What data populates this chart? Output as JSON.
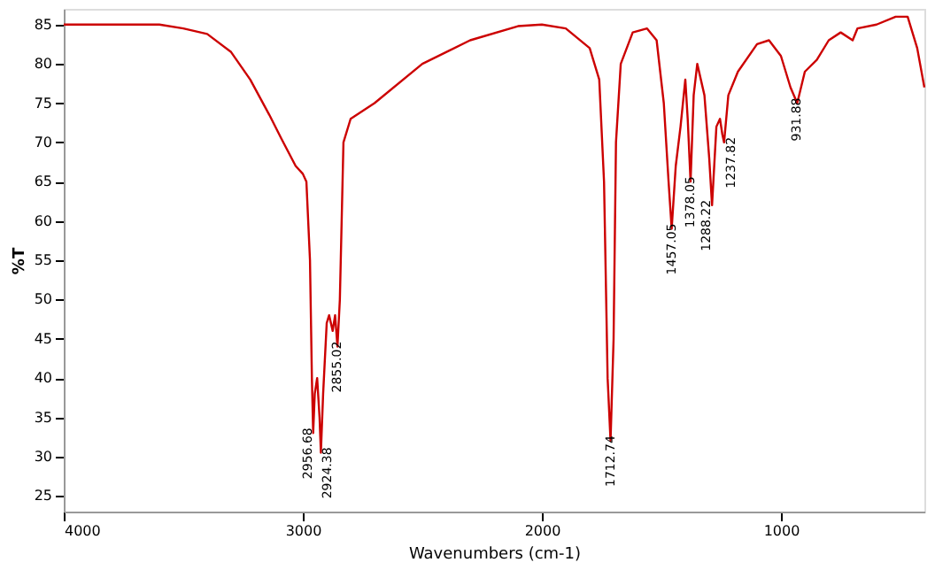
{
  "chart_data": {
    "type": "line",
    "xlabel": "Wavenumbers (cm-1)",
    "ylabel": "%T",
    "x": [
      4000,
      3800,
      3600,
      3500,
      3400,
      3300,
      3220,
      3140,
      3090,
      3030,
      3000,
      2985,
      2970,
      2962,
      2956.68,
      2950,
      2940,
      2930,
      2924.38,
      2915,
      2900,
      2890,
      2875,
      2865,
      2855.02,
      2845,
      2830,
      2800,
      2700,
      2500,
      2300,
      2100,
      2000,
      1900,
      1800,
      1760,
      1740,
      1725,
      1712.74,
      1700,
      1690,
      1670,
      1620,
      1560,
      1520,
      1490,
      1470,
      1457.05,
      1440,
      1420,
      1400,
      1390,
      1378.05,
      1365,
      1350,
      1320,
      1300,
      1288.22,
      1270,
      1255,
      1245,
      1237.82,
      1220,
      1180,
      1100,
      1050,
      1000,
      960,
      931.88,
      900,
      850,
      800,
      750,
      700,
      680,
      600,
      520,
      470,
      430,
      400
    ],
    "series": [
      {
        "color": "#cc0000",
        "values": [
          85,
          85,
          85,
          84.5,
          83.8,
          81.5,
          78,
          73.5,
          70.5,
          67,
          66,
          65,
          55,
          40,
          33,
          38,
          40,
          35,
          30.5,
          38,
          47,
          48,
          46,
          48,
          44,
          50,
          70,
          73,
          75,
          80,
          83,
          84.8,
          85,
          84.5,
          82,
          78,
          65,
          40,
          32,
          45,
          70,
          80,
          84,
          84.5,
          83,
          75,
          65,
          59,
          67,
          72,
          78,
          73,
          65,
          76,
          80,
          76,
          68,
          62,
          72,
          73,
          71,
          70,
          76,
          79,
          82.5,
          83,
          81,
          77,
          75,
          79,
          80.5,
          83,
          84,
          83,
          84.5,
          85,
          86,
          86,
          82,
          77
        ]
      }
    ],
    "xlim": [
      4000,
      400
    ],
    "xticks": [
      {
        "value": 4000,
        "label": "4000"
      },
      {
        "value": 3000,
        "label": "3000"
      },
      {
        "value": 2000,
        "label": "2000"
      },
      {
        "value": 1000,
        "label": "1000"
      }
    ],
    "ylim": [
      23,
      87
    ],
    "yticks": [
      25,
      30,
      35,
      40,
      45,
      50,
      55,
      60,
      65,
      70,
      75,
      80,
      85
    ],
    "grid": false,
    "marker": "none",
    "line_style": "solid",
    "annotations": [
      {
        "text": "2956.68",
        "x": 2956.68,
        "y": 33
      },
      {
        "text": "2924.38",
        "x": 2924.38,
        "y": 30.5
      },
      {
        "text": "2855.02",
        "x": 2855.02,
        "y": 44
      },
      {
        "text": "1712.74",
        "x": 1712.74,
        "y": 32
      },
      {
        "text": "1457.05",
        "x": 1457.05,
        "y": 59
      },
      {
        "text": "1378.05",
        "x": 1378.05,
        "y": 65
      },
      {
        "text": "1288.22",
        "x": 1288.22,
        "y": 62
      },
      {
        "text": "1237.82",
        "x": 1237.82,
        "y": 70
      },
      {
        "text": "931.88",
        "x": 931.88,
        "y": 75
      }
    ]
  }
}
